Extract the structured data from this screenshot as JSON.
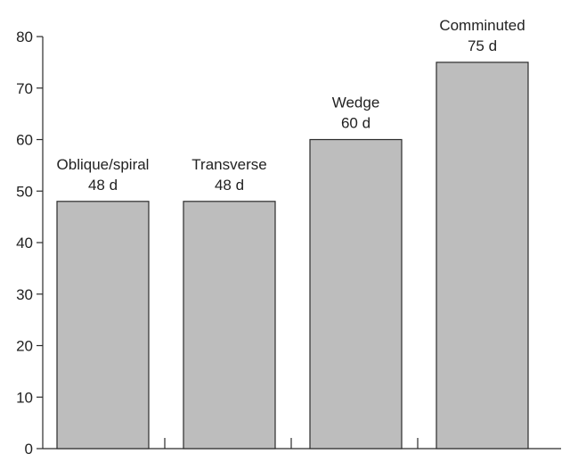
{
  "chart_data": {
    "type": "bar",
    "title": "",
    "xlabel": "",
    "ylabel": "",
    "ylim": [
      0,
      80
    ],
    "yticks": [
      0,
      10,
      20,
      30,
      40,
      50,
      60,
      70,
      80
    ],
    "categories": [
      "Oblique/spiral",
      "Transverse",
      "Wedge",
      "Comminuted"
    ],
    "values": [
      48,
      48,
      60,
      75
    ],
    "data_labels": [
      "48 d",
      "48 d",
      "60 d",
      "75 d"
    ],
    "grid": false,
    "colors": {
      "bar_fill": "#bdbdbd",
      "bar_stroke": "#2b2b2b",
      "axis": "#2b2b2b",
      "text": "#222222"
    }
  }
}
